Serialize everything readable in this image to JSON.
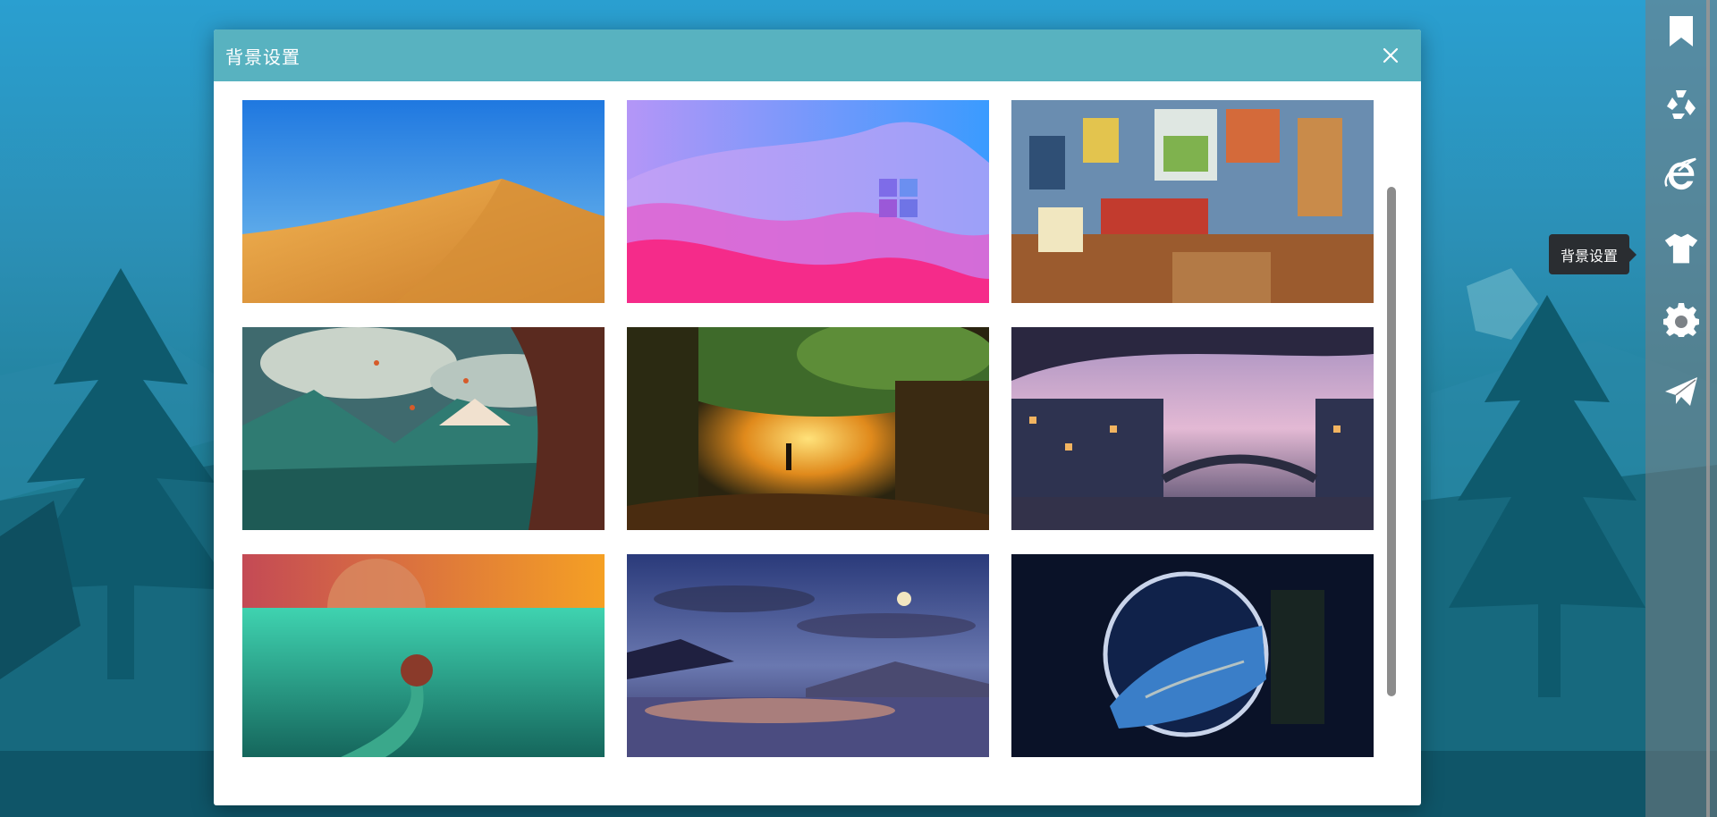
{
  "modal": {
    "title": "背景设置",
    "close_icon": "close-icon",
    "wallpapers": [
      {
        "name": "desert-dune",
        "icon": "wallpaper-desert"
      },
      {
        "name": "windows-gradient",
        "icon": "wallpaper-windows"
      },
      {
        "name": "cartoon-bedroom",
        "icon": "wallpaper-bedroom"
      },
      {
        "name": "mountain-valley",
        "icon": "wallpaper-mountains"
      },
      {
        "name": "tree-tunnel",
        "icon": "wallpaper-tree"
      },
      {
        "name": "floating-village",
        "icon": "wallpaper-village"
      },
      {
        "name": "ocean-moon",
        "icon": "wallpaper-ocean"
      },
      {
        "name": "horses-sunset",
        "icon": "wallpaper-horses"
      },
      {
        "name": "earth-portal",
        "icon": "wallpaper-earth"
      }
    ]
  },
  "sidebar": {
    "items": [
      {
        "icon": "bookmark-icon"
      },
      {
        "icon": "recycle-icon"
      },
      {
        "icon": "ie-icon"
      },
      {
        "icon": "shirt-icon"
      },
      {
        "icon": "gear-icon"
      },
      {
        "icon": "paper-plane-icon"
      }
    ],
    "tooltip": "背景设置"
  },
  "colors": {
    "header": "#58b2c0",
    "accent": "#2d7d93"
  }
}
